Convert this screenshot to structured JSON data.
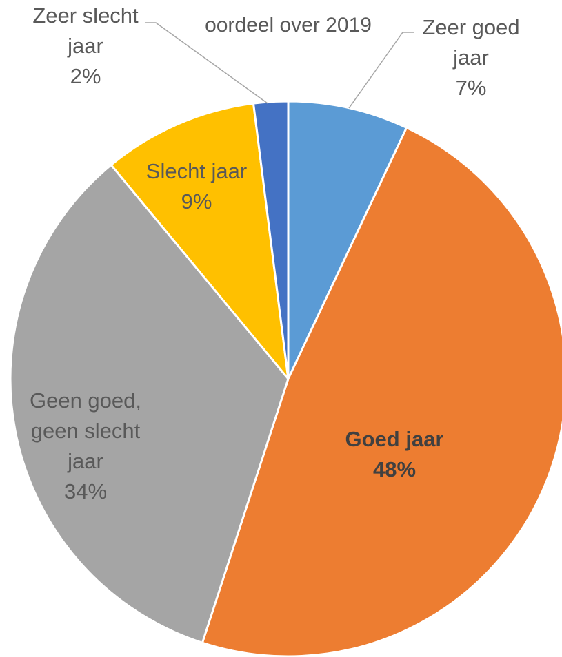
{
  "chart_data": {
    "type": "pie",
    "title": "oordeel over 2019",
    "start_angle_deg": 0,
    "direction": "clockwise",
    "slices": [
      {
        "label": "Zeer goed jaar",
        "value": 7,
        "value_label": "7%",
        "color": "#5B9BD5",
        "label_bold": false
      },
      {
        "label": "Goed jaar",
        "value": 48,
        "value_label": "48%",
        "color": "#ED7D31",
        "label_bold": true
      },
      {
        "label": "Geen goed, geen slecht jaar",
        "value": 34,
        "value_label": "34%",
        "color": "#A5A5A5",
        "label_bold": false
      },
      {
        "label": "Slecht jaar",
        "value": 9,
        "value_label": "9%",
        "color": "#FFC000",
        "label_bold": false
      },
      {
        "label": "Zeer slecht jaar",
        "value": 2,
        "value_label": "2%",
        "color": "#4472C4",
        "label_bold": false
      }
    ]
  }
}
